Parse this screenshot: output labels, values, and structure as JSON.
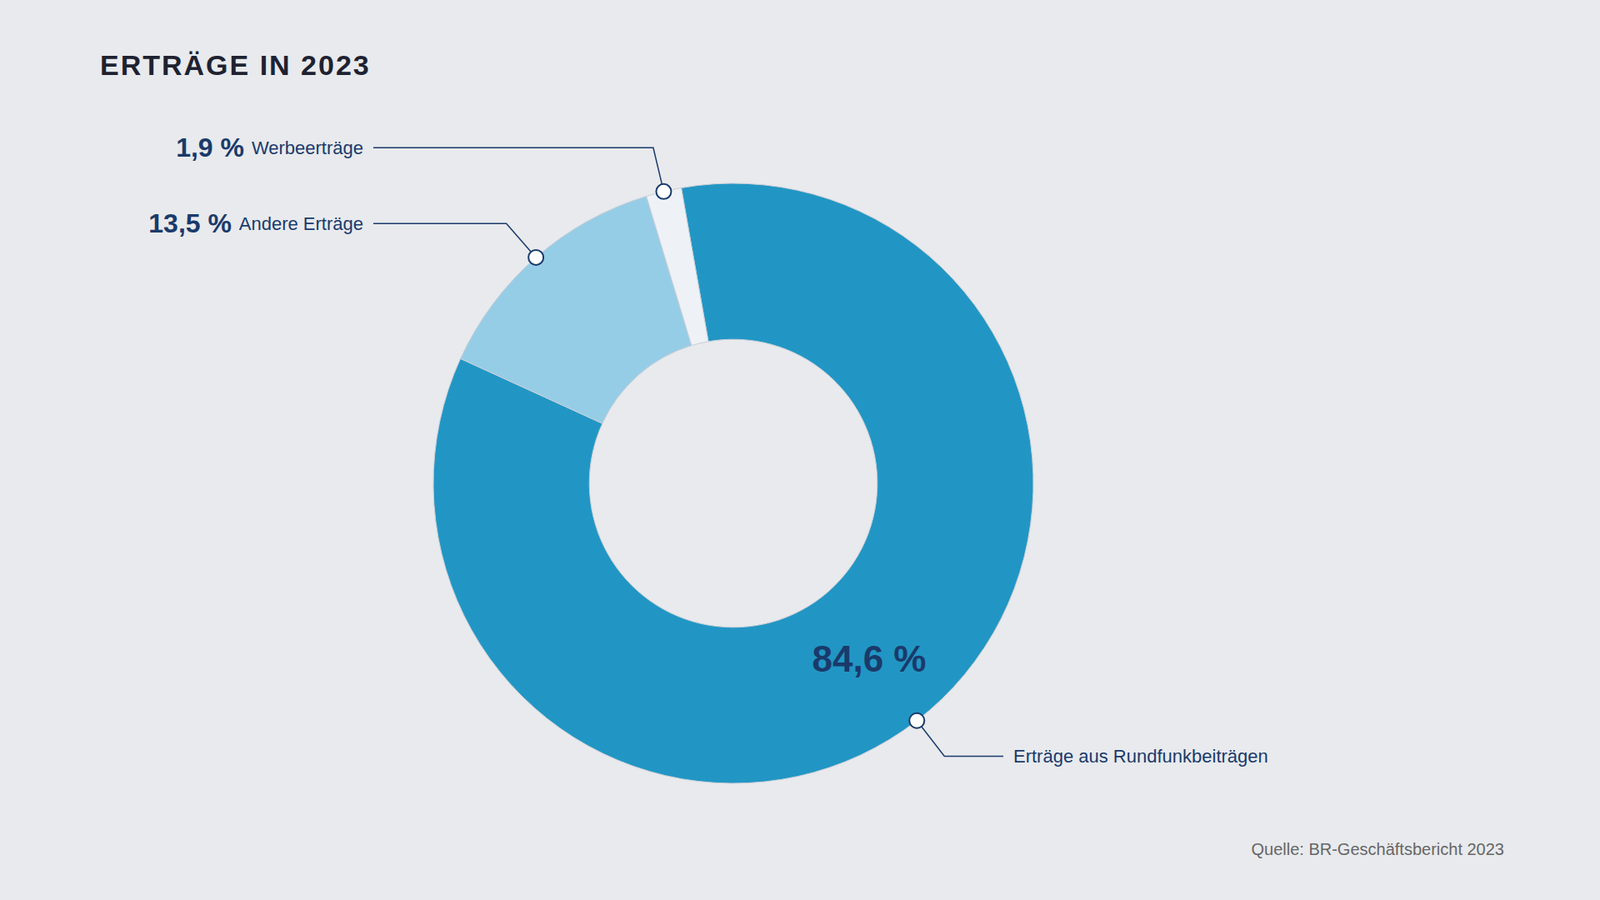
{
  "chart_data": {
    "type": "donut",
    "title": "ERTRÄGE IN 2023",
    "categories": [
      "Erträge aus Rundfunkbeiträgen",
      "Andere Erträge",
      "Werbeerträge"
    ],
    "values": [
      84.6,
      13.5,
      1.9
    ],
    "value_labels": [
      "84,6 %",
      "13,5 %",
      "1,9 %"
    ],
    "colors": [
      "#2196c4",
      "#96cde6",
      "#eef2f6"
    ],
    "data_labels": true,
    "annotations": [
      "Quelle: BR-Geschäftsbericht 2023"
    ]
  }
}
